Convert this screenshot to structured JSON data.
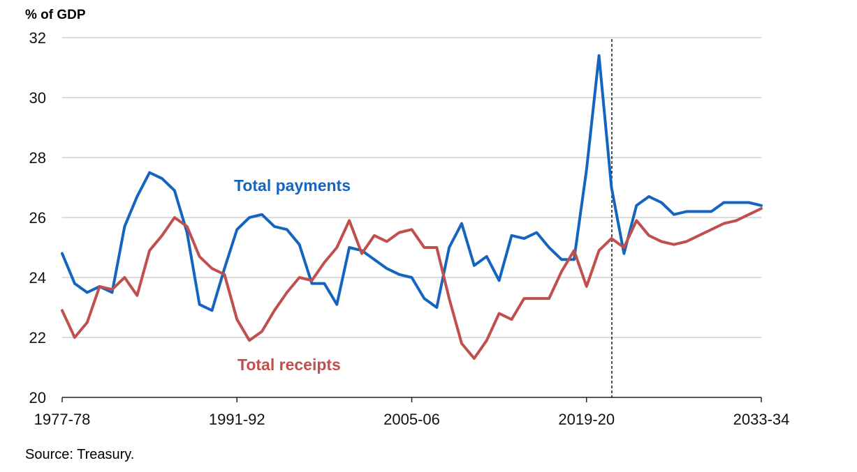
{
  "chart_data": {
    "type": "line",
    "ylabel": "% of GDP",
    "ylim": [
      20,
      32
    ],
    "yticks": [
      20,
      22,
      24,
      26,
      28,
      30,
      32
    ],
    "x_start_year": 1977,
    "x_end_year": 2033,
    "xticks": [
      {
        "label": "1977-78",
        "year": 1977
      },
      {
        "label": "1991-92",
        "year": 1991
      },
      {
        "label": "2005-06",
        "year": 2005
      },
      {
        "label": "2019-20",
        "year": 2019
      },
      {
        "label": "2033-34",
        "year": 2033
      }
    ],
    "forecast_divider_year": 2021,
    "grid": true,
    "series": [
      {
        "name": "Total payments",
        "color": "#1565C0",
        "values": [
          24.8,
          23.8,
          23.5,
          23.7,
          23.5,
          25.7,
          26.7,
          27.5,
          27.3,
          26.9,
          25.5,
          23.1,
          22.9,
          24.3,
          25.6,
          26.0,
          26.1,
          25.7,
          25.6,
          25.1,
          23.8,
          23.8,
          23.1,
          25.0,
          24.9,
          24.6,
          24.3,
          24.1,
          24.0,
          23.3,
          23.0,
          25.0,
          25.8,
          24.4,
          24.7,
          23.9,
          25.4,
          25.3,
          25.5,
          25.0,
          24.6,
          24.6,
          27.6,
          31.4,
          27.0,
          24.8,
          26.4,
          26.7,
          26.5,
          26.1,
          26.2,
          26.2,
          26.2,
          26.5,
          26.5,
          26.5,
          26.4
        ]
      },
      {
        "name": "Total receipts",
        "color": "#C0504D",
        "values": [
          22.9,
          22.0,
          22.5,
          23.7,
          23.6,
          24.0,
          23.4,
          24.9,
          25.4,
          26.0,
          25.7,
          24.7,
          24.3,
          24.1,
          22.6,
          21.9,
          22.2,
          22.9,
          23.5,
          24.0,
          23.9,
          24.5,
          25.0,
          25.9,
          24.8,
          25.4,
          25.2,
          25.5,
          25.6,
          25.0,
          25.0,
          23.3,
          21.8,
          21.3,
          21.9,
          22.8,
          22.6,
          23.3,
          23.3,
          23.3,
          24.2,
          24.9,
          23.7,
          24.9,
          25.3,
          25.0,
          25.9,
          25.4,
          25.2,
          25.1,
          25.2,
          25.4,
          25.6,
          25.8,
          25.9,
          26.1,
          26.3
        ]
      }
    ],
    "annotations": [
      {
        "text": "Total payments",
        "series": 0
      },
      {
        "text": "Total receipts",
        "series": 1
      }
    ]
  },
  "source": "Source: Treasury."
}
